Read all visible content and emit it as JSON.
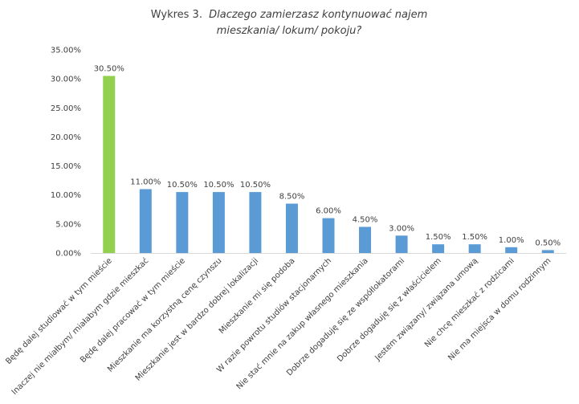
{
  "chart_data": {
    "type": "bar",
    "title_prefix": "Wykres 3.",
    "title_italic_line1": "Dlaczego zamierzasz kontynuować najem",
    "title_italic_line2": "mieszkania/ lokum/ pokoju?",
    "xlabel": "",
    "ylabel": "",
    "ylim": [
      0,
      35
    ],
    "yticks": [
      "0.00%",
      "5.00%",
      "10.00%",
      "15.00%",
      "20.00%",
      "25.00%",
      "30.00%",
      "35.00%"
    ],
    "grid": false,
    "categories": [
      "Będę dalej studiować w tym mieście",
      "Inaczej nie miałbym/ miałabym gdzie mieszkać",
      "Będę dalej pracować w tym mieście",
      "Mieszkanie ma korzystną cenę czynszu",
      "Mieszkanie jest w bardzo dobrej lokalizacji",
      "Mieszkanie mi się podoba",
      "W razie powrotu studiów stacjonarnych",
      "Nie stać mnie na zakup własnego mieszkania",
      "Dobrze dogaduję się ze współlokatorami",
      "Dobrze dogaduję się z właścicielem",
      "Jestem związany/ związana umową",
      "Nie chcę mieszkać z rodzicami",
      "Nie ma miejsca w domu rodzinnym"
    ],
    "values": [
      30.5,
      11.0,
      10.5,
      10.5,
      10.5,
      8.5,
      6.0,
      4.5,
      3.0,
      1.5,
      1.5,
      1.0,
      0.5
    ],
    "data_labels": [
      "30.50%",
      "11.00%",
      "10.50%",
      "10.50%",
      "10.50%",
      "8.50%",
      "6.00%",
      "4.50%",
      "3.00%",
      "1.50%",
      "1.50%",
      "1.00%",
      "0.50%"
    ],
    "colors": {
      "highlight": "#92D050",
      "bar": "#5B9BD5",
      "axis": "#D9D9D9",
      "text": "#404040"
    },
    "highlight_index": 0
  }
}
